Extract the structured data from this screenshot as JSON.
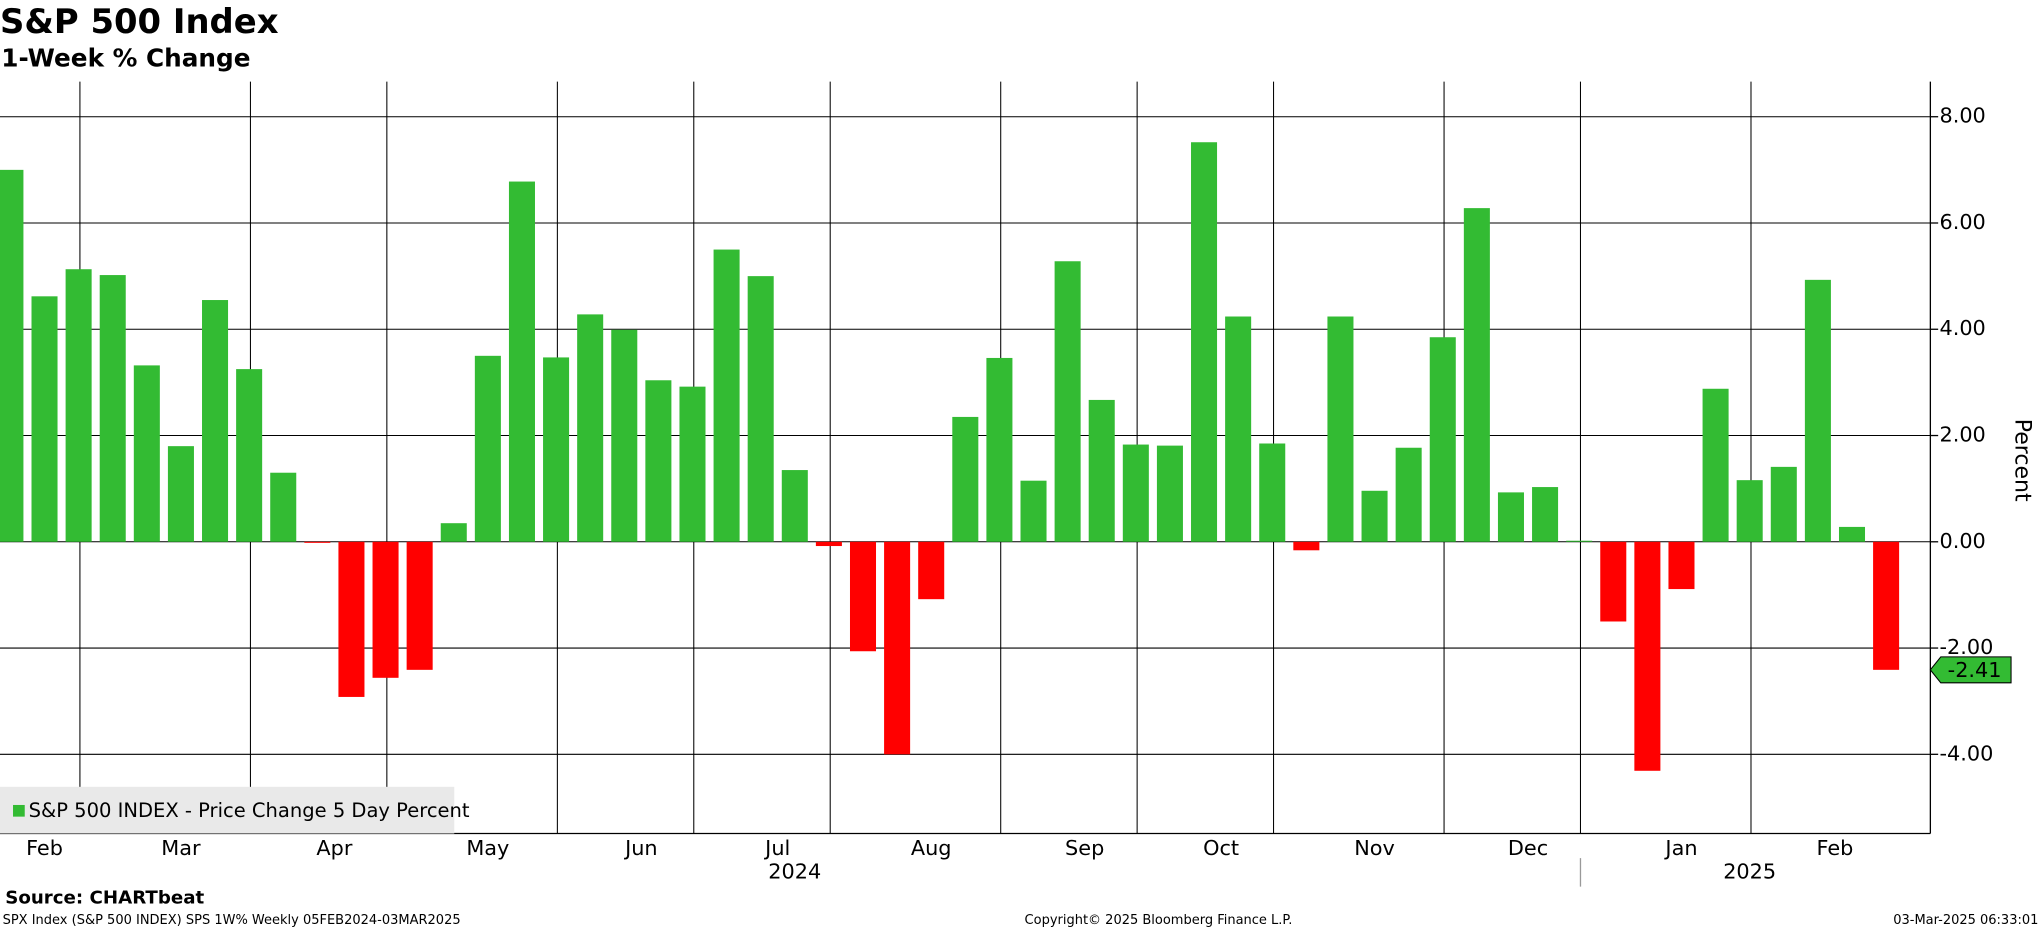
{
  "chart_data": {
    "type": "bar",
    "title": "S&P 500 Index",
    "subtitle": "1-Week % Change",
    "y_label": "Percent",
    "series_name": "S&P 500 INDEX - Price Change 5 Day Percent",
    "color": "#33bb33",
    "negative_color": "#ff0000",
    "years": [
      {
        "year": "2024",
        "months": [
          {
            "month": "Feb",
            "values": [
              7.0,
              4.62,
              5.13
            ]
          },
          {
            "month": "Mar",
            "values": [
              5.02,
              3.32,
              1.8,
              4.55,
              3.25
            ]
          },
          {
            "month": "Apr",
            "values": [
              1.3,
              -0.02,
              -2.92,
              -2.56
            ]
          },
          {
            "month": "May",
            "values": [
              -2.41,
              0.35,
              3.5,
              6.78,
              3.47
            ]
          },
          {
            "month": "Jun",
            "values": [
              4.28,
              3.99,
              3.04,
              2.92
            ]
          },
          {
            "month": "Jul",
            "values": [
              5.5,
              5.0,
              1.35,
              -0.08
            ]
          },
          {
            "month": "Aug",
            "values": [
              -2.06,
              -4.0,
              -1.08,
              2.35,
              3.46
            ]
          },
          {
            "month": "Sep",
            "values": [
              1.15,
              5.28,
              2.67,
              1.83
            ]
          },
          {
            "month": "Oct",
            "values": [
              1.81,
              7.52,
              4.24,
              1.85
            ]
          },
          {
            "month": "Nov",
            "values": [
              -0.16,
              4.24,
              0.96,
              1.77,
              3.85
            ]
          },
          {
            "month": "Dec",
            "values": [
              6.28,
              0.93,
              1.03,
              0.02
            ]
          }
        ]
      },
      {
        "year": "2025",
        "months": [
          {
            "month": "Jan",
            "values": [
              -1.5,
              -4.31,
              -0.89,
              2.88,
              1.16
            ]
          },
          {
            "month": "Feb",
            "values": [
              1.41,
              4.93,
              0.28,
              -2.41
            ]
          }
        ]
      }
    ],
    "ylim": [
      -5.49,
      8.66
    ],
    "yticks": [
      {
        "value": 8,
        "label": "8.00"
      },
      {
        "value": 6,
        "label": "6.00"
      },
      {
        "value": 4,
        "label": "4.00"
      },
      {
        "value": 2,
        "label": "2.00"
      },
      {
        "value": 0,
        "label": "0.00"
      },
      {
        "value": -2,
        "label": "-2.00"
      },
      {
        "value": -4,
        "label": "-4.00"
      }
    ],
    "grid": true,
    "legend": "lower left",
    "source": "Source: CHARTbeat",
    "footer": {
      "left": "SPX Index (S&P 500 INDEX) SPS 1W% Weekly 05FEB2024-03MAR2025",
      "center": "Copyright© 2025 Bloomberg Finance L.P.",
      "right": "03-Mar-2025 06:33:01"
    }
  }
}
